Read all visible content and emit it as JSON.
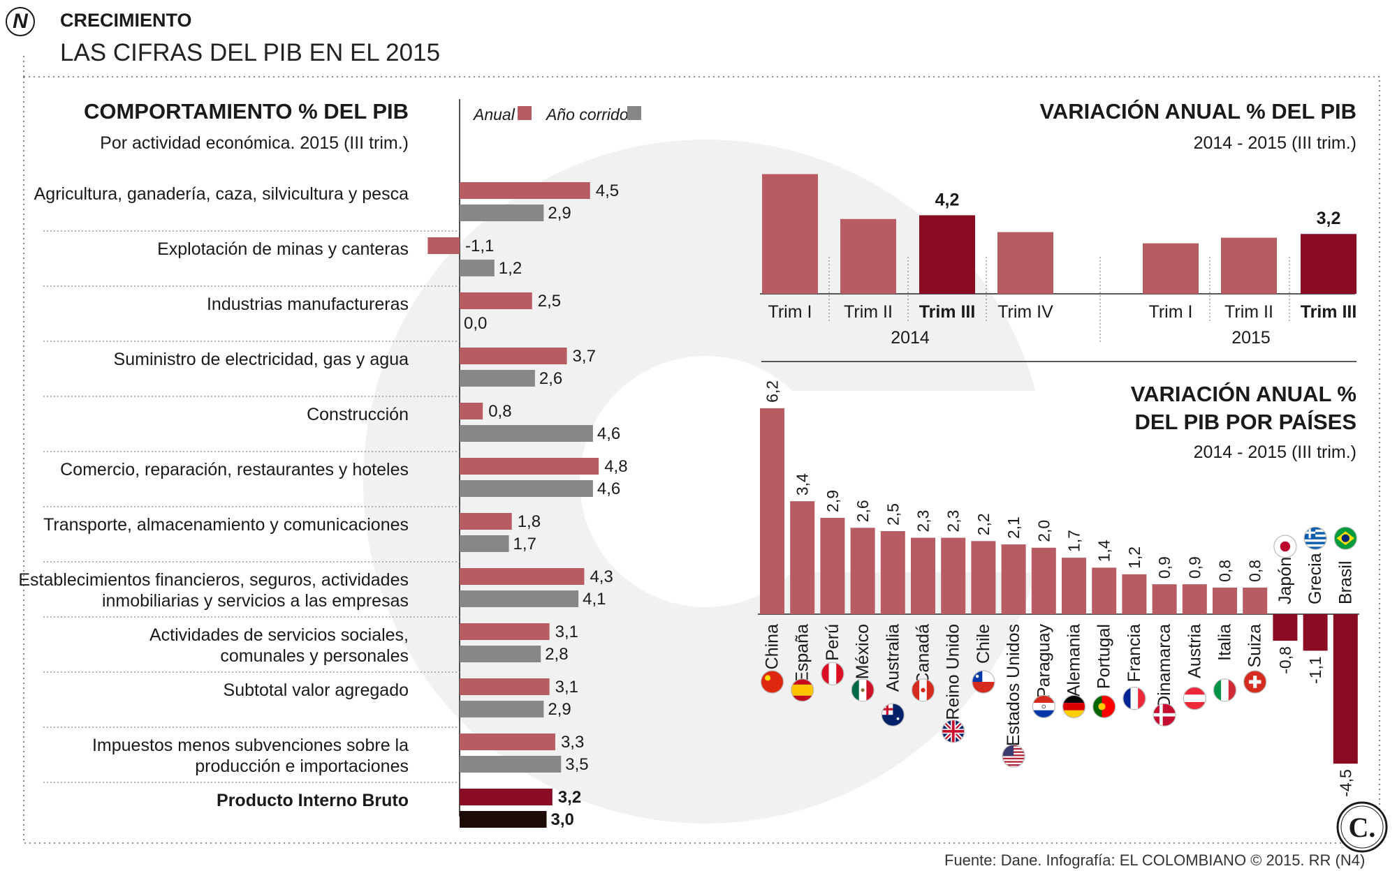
{
  "header": {
    "logo_letter": "N",
    "kicker": "CRECIMIENTO",
    "title": "LAS CIFRAS DEL PIB EN EL 2015"
  },
  "colors": {
    "anual": "#b85c64",
    "corrido": "#878787",
    "highlight": "#8a0c24",
    "pib_corrido": "#1e0a06",
    "text": "#1a1a1a",
    "divider": "#888888",
    "watermark": "#f1f1f1"
  },
  "chart_data": [
    {
      "id": "sectores",
      "type": "bar",
      "orientation": "horizontal",
      "title": "COMPORTAMIENTO % DEL PIB",
      "subtitle": "Por actividad económica. 2015 (III trim.)",
      "legend": [
        {
          "name": "Anual",
          "color": "#b85c64"
        },
        {
          "name": "Año corrido",
          "color": "#878787"
        }
      ],
      "categories": [
        "Agricultura, ganadería, caza, silvicultura y pesca",
        "Explotación de minas y canteras",
        "Industrias manufactureras",
        "Suministro de electricidad, gas y agua",
        "Construcción",
        "Comercio, reparación, restaurantes y hoteles",
        "Transporte, almacenamiento y comunicaciones",
        "Establecimientos financieros, seguros, actividades inmobiliarias y servicios a las empresas",
        "Actividades de servicios sociales, comunales y personales",
        "Subtotal valor agregado",
        "Impuestos menos subvenciones sobre la producción e importaciones",
        "Producto Interno Bruto"
      ],
      "category_lines": [
        [
          "Agricultura, ganadería, caza, silvicultura y pesca"
        ],
        [
          "Explotación de minas y canteras"
        ],
        [
          "Industrias manufactureras"
        ],
        [
          "Suministro de electricidad, gas y agua"
        ],
        [
          "Construcción"
        ],
        [
          "Comercio, reparación, restaurantes y hoteles"
        ],
        [
          "Transporte, almacenamiento y comunicaciones"
        ],
        [
          "Establecimientos financieros, seguros, actividades",
          "inmobiliarias y servicios a las empresas"
        ],
        [
          "Actividades de servicios sociales,",
          "comunales y personales"
        ],
        [
          "Subtotal valor agregado"
        ],
        [
          "Impuestos menos subvenciones sobre la",
          "producción e importaciones"
        ],
        [
          "Producto Interno Bruto"
        ]
      ],
      "series": [
        {
          "name": "Anual",
          "values": [
            4.5,
            -1.1,
            2.5,
            3.7,
            0.8,
            4.8,
            1.8,
            4.3,
            3.1,
            3.1,
            3.3,
            3.2
          ],
          "labels": [
            "4,5",
            "-1,1",
            "2,5",
            "3,7",
            "0,8",
            "4,8",
            "1,8",
            "4,3",
            "3,1",
            "3,1",
            "3,3",
            "3,2"
          ]
        },
        {
          "name": "Año corrido",
          "values": [
            2.9,
            1.2,
            0.0,
            2.6,
            4.6,
            4.6,
            1.7,
            4.1,
            2.8,
            2.9,
            3.5,
            3.0
          ],
          "labels": [
            "2,9",
            "1,2",
            "0,0",
            "2,6",
            "4,6",
            "4,6",
            "1,7",
            "4,1",
            "2,8",
            "2,9",
            "3,5",
            "3,0"
          ]
        }
      ]
    },
    {
      "id": "trimestral",
      "type": "bar",
      "title": "VARIACIÓN ANUAL % DEL PIB",
      "subtitle": "2014 - 2015 (III trim.)",
      "groups": [
        {
          "year": "2014",
          "categories": [
            "Trim I",
            "Trim II",
            "Trim III",
            "Trim IV"
          ],
          "values": [
            6.4,
            4.0,
            4.2,
            3.3
          ],
          "highlight_label": "4,2",
          "highlight_index": 2
        },
        {
          "year": "2015",
          "categories": [
            "Trim I",
            "Trim II",
            "Trim III"
          ],
          "values": [
            2.7,
            3.0,
            3.2
          ],
          "highlight_label": "3,2",
          "highlight_index": 2
        }
      ]
    },
    {
      "id": "paises",
      "type": "bar",
      "title_lines": [
        "VARIACIÓN ANUAL %",
        "DEL PIB POR PAÍSES"
      ],
      "subtitle": "2014 - 2015 (III trim.)",
      "categories": [
        "China",
        "España",
        "Perú",
        "México",
        "Australia",
        "Canadá",
        "Reino Unido",
        "Chile",
        "Estados Unidos",
        "Paraguay",
        "Alemania",
        "Portugal",
        "Francia",
        "Dinamarca",
        "Austria",
        "Italia",
        "Suiza",
        "Japón",
        "Grecia",
        "Brasil"
      ],
      "values": [
        6.2,
        3.4,
        2.9,
        2.6,
        2.5,
        2.3,
        2.3,
        2.2,
        2.1,
        2.0,
        1.7,
        1.4,
        1.2,
        0.9,
        0.9,
        0.8,
        0.8,
        -0.8,
        -1.1,
        -4.5
      ],
      "labels": [
        "6,2",
        "3,4",
        "2,9",
        "2,6",
        "2,5",
        "2,3",
        "2,3",
        "2,2",
        "2,1",
        "2,0",
        "1,7",
        "1,4",
        "1,2",
        "0,9",
        "0,9",
        "0,8",
        "0,8",
        "-0,8",
        "-1,1",
        "-4,5"
      ],
      "flags": [
        "china-flag",
        "spain-flag",
        "peru-flag",
        "mexico-flag",
        "australia-flag",
        "canada-flag",
        "uk-flag",
        "chile-flag",
        "usa-flag",
        "paraguay-flag",
        "germany-flag",
        "portugal-flag",
        "france-flag",
        "denmark-flag",
        "austria-flag",
        "italy-flag",
        "switzerland-flag",
        "japan-flag",
        "greece-flag",
        "brazil-flag"
      ]
    }
  ],
  "footer": {
    "source": "Fuente: Dane. Infografía: EL COLOMBIANO © 2015. RR (N4)",
    "brand_letter": "C."
  }
}
